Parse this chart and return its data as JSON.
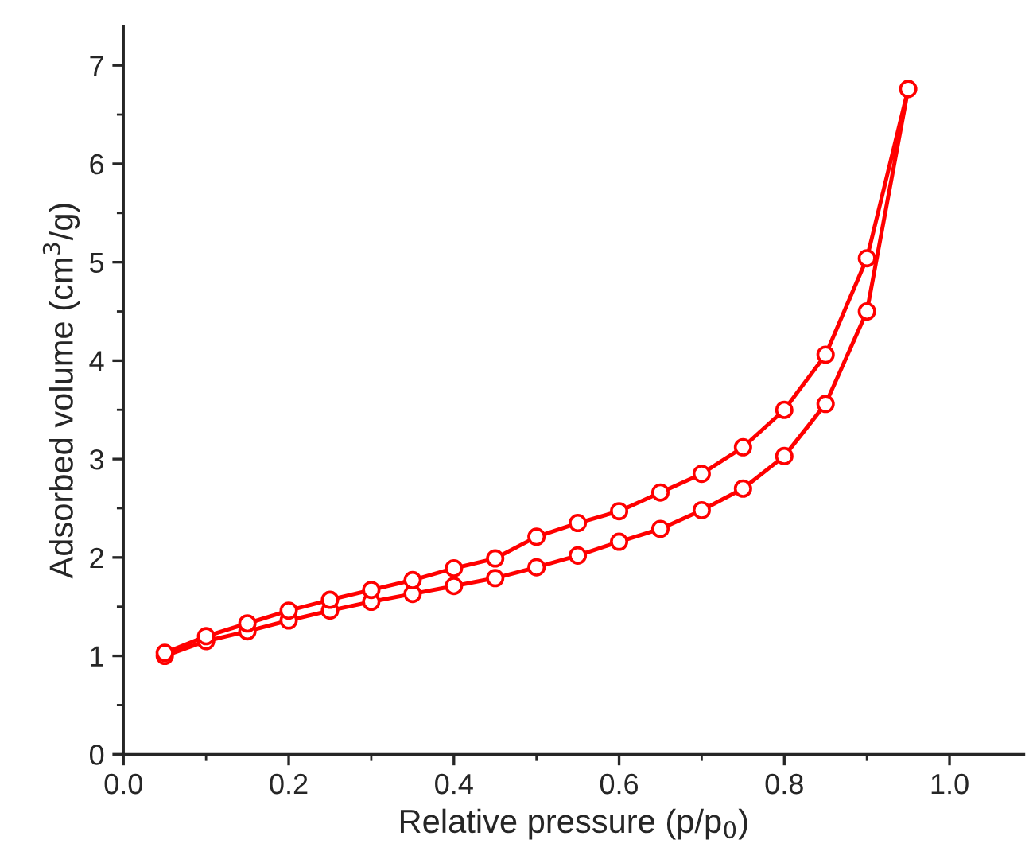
{
  "chart_data": {
    "type": "line",
    "xlabel": "Relative pressure (p/p$_{0}$)",
    "ylabel": "Adsorbed volume (cm$^{3}$/g)",
    "marker": "circle",
    "line_style": "solid",
    "grid": false,
    "legend": false,
    "xlim": [
      0.0,
      1.09
    ],
    "xticks": [
      {
        "value": 0.0,
        "label": "0.0"
      },
      {
        "value": 0.2,
        "label": "0.2"
      },
      {
        "value": 0.4,
        "label": "0.4"
      },
      {
        "value": 0.6,
        "label": "0.6"
      },
      {
        "value": 0.8,
        "label": "0.8"
      },
      {
        "value": 1.0,
        "label": "1.0"
      }
    ],
    "ylim": [
      0,
      7.4
    ],
    "yticks": [
      0,
      1,
      2,
      3,
      4,
      5,
      6,
      7
    ],
    "series": [
      {
        "color": "#ff0000",
        "x": [
          0.05,
          0.1,
          0.15,
          0.2,
          0.25,
          0.3,
          0.35,
          0.4,
          0.45,
          0.5,
          0.55,
          0.6,
          0.65,
          0.7,
          0.75,
          0.8,
          0.85,
          0.9,
          0.95,
          0.9,
          0.85,
          0.8,
          0.75,
          0.7,
          0.65,
          0.6,
          0.55,
          0.5,
          0.45,
          0.4,
          0.35,
          0.3,
          0.25,
          0.2,
          0.15,
          0.1,
          0.05
        ],
        "values": [
          1.0,
          1.15,
          1.25,
          1.36,
          1.46,
          1.55,
          1.63,
          1.71,
          1.79,
          1.9,
          2.02,
          2.16,
          2.29,
          2.48,
          2.7,
          3.03,
          3.56,
          4.5,
          6.76,
          5.04,
          4.06,
          3.5,
          3.12,
          2.85,
          2.66,
          2.47,
          2.35,
          2.21,
          1.99,
          1.89,
          1.77,
          1.67,
          1.57,
          1.46,
          1.33,
          1.2,
          1.03
        ]
      }
    ]
  }
}
